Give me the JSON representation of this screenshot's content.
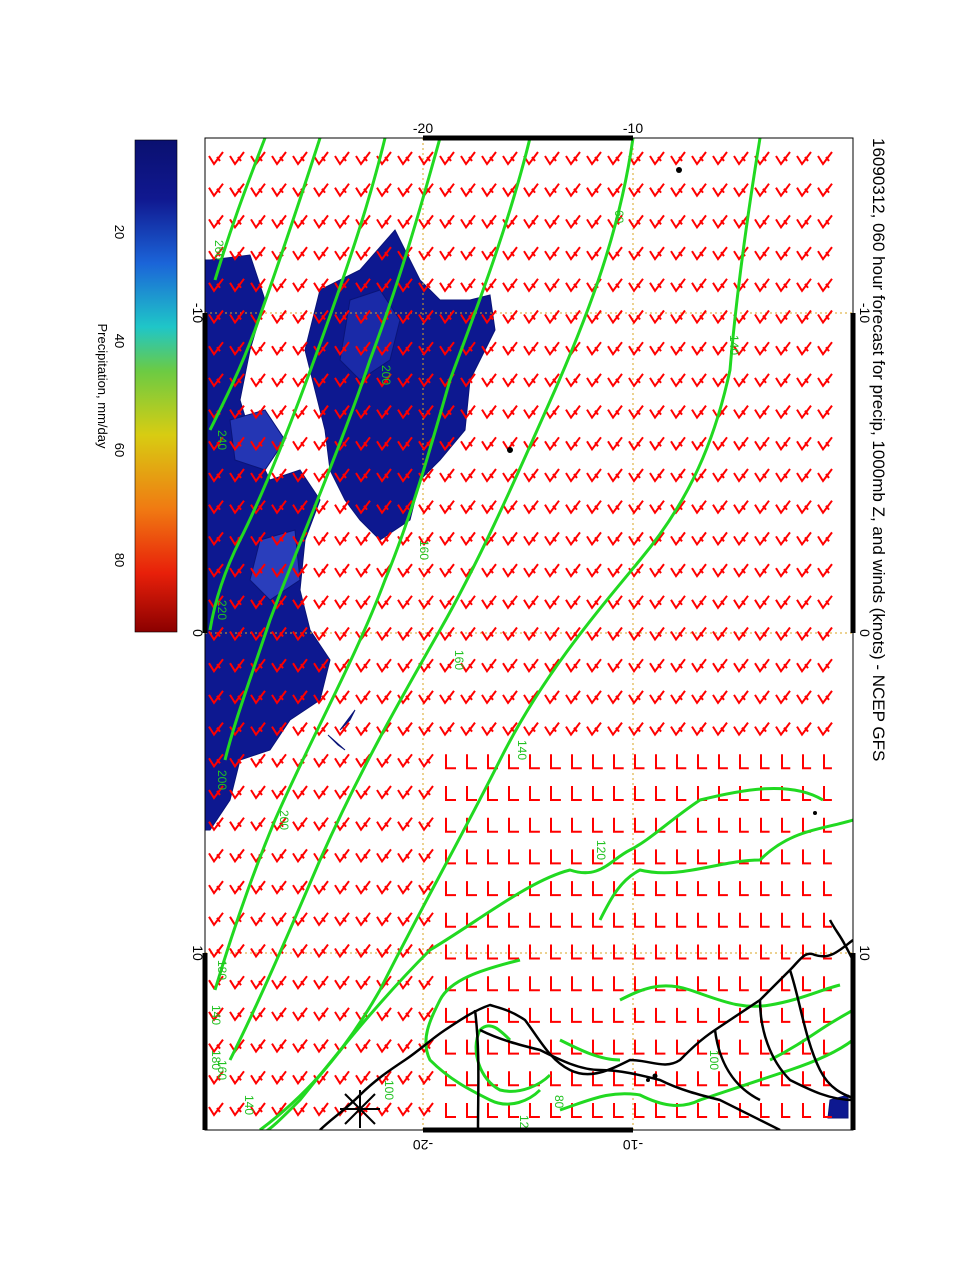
{
  "title": "16090312, 060 hour forecast for precip, 1000mb Z, and winds (knots) - NCEP GFS",
  "colorbar": {
    "label": "Precipitation, mm/day",
    "ticks": [
      "20",
      "40",
      "60",
      "80"
    ],
    "colors": [
      "#8b0000",
      "#e8200a",
      "#f07a12",
      "#d8cc12",
      "#6ccb43",
      "#1fc6c8",
      "#1b64d8",
      "#101890",
      "#0a1070"
    ]
  },
  "axes": {
    "left_ticks": [
      "10",
      "0",
      "-10"
    ],
    "right_ticks": [
      "10",
      "0",
      "-10"
    ],
    "top_ticks": [
      "-20",
      "-10"
    ],
    "bottom_ticks": [
      "-20",
      "-10"
    ]
  },
  "contour_labels": [
    "260",
    "240",
    "220",
    "200",
    "200",
    "180",
    "160",
    "160",
    "140",
    "140",
    "140",
    "120",
    "100",
    "80",
    "60",
    "100",
    "120",
    "140",
    "160",
    "180",
    "200"
  ],
  "colors": {
    "wind_barb": "#ff0000",
    "contour": "#21d921",
    "precip": "#0d1890",
    "coast": "#000000",
    "grid": "#d9a520"
  }
}
